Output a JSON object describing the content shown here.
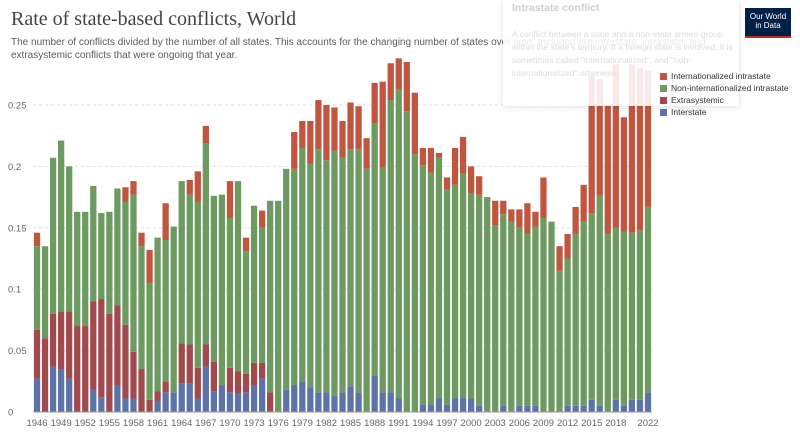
{
  "header": {
    "title": "Rate of state-based conflicts, World",
    "subtitle": "The number of conflicts divided by the number of all states. This accounts for the changing number of states over time. Included are interstate, intrastate, and extrasystemic conflicts that were ongoing that year.",
    "logo_line1": "Our World",
    "logo_line2": "in Data"
  },
  "tooltip": {
    "title": "Intrastate conflict",
    "text": "A conflict between a state and a non-state armed group within the state's territory. If a foreign state is involved, it is sometimes called \"internationalized\", and \"non-internationalized\" otherwise."
  },
  "legend": [
    {
      "label": "Internationalized intrastate",
      "color": "#c15640"
    },
    {
      "label": "Non-internationalized intrastate",
      "color": "#6c9a61"
    },
    {
      "label": "Extrasystemic",
      "color": "#a14a4e"
    },
    {
      "label": "Interstate",
      "color": "#5d73a8"
    }
  ],
  "chart_data": {
    "type": "bar",
    "stacked": true,
    "title": "Rate of state-based conflicts, World",
    "ylim": [
      0,
      0.285
    ],
    "y_ticks": [
      "0",
      "0.05",
      "0.1",
      "0.15",
      "0.2",
      "0.25"
    ],
    "y_tick_values": [
      0,
      0.05,
      0.1,
      0.15,
      0.2,
      0.25
    ],
    "x_tick_labels": [
      "1946",
      "1949",
      "1952",
      "1955",
      "1958",
      "1961",
      "1964",
      "1967",
      "1970",
      "1973",
      "1976",
      "1979",
      "1982",
      "1985",
      "1988",
      "1991",
      "1994",
      "1997",
      "2000",
      "2003",
      "2006",
      "2009",
      "2012",
      "2015",
      "2018",
      "2022"
    ],
    "grid": true,
    "x": [
      1946,
      1947,
      1948,
      1949,
      1950,
      1951,
      1952,
      1953,
      1954,
      1955,
      1956,
      1957,
      1958,
      1959,
      1960,
      1961,
      1962,
      1963,
      1964,
      1965,
      1966,
      1967,
      1968,
      1969,
      1970,
      1971,
      1972,
      1973,
      1974,
      1975,
      1976,
      1977,
      1978,
      1979,
      1980,
      1981,
      1982,
      1983,
      1984,
      1985,
      1986,
      1987,
      1988,
      1989,
      1990,
      1991,
      1992,
      1993,
      1994,
      1995,
      1996,
      1997,
      1998,
      1999,
      2000,
      2001,
      2002,
      2003,
      2004,
      2005,
      2006,
      2007,
      2008,
      2009,
      2010,
      2011,
      2012,
      2013,
      2014,
      2015,
      2016,
      2017,
      2018,
      2019,
      2020,
      2021,
      2022
    ],
    "series": [
      {
        "name": "Interstate",
        "color": "#5d73a8",
        "values": [
          0.027,
          0.0,
          0.037,
          0.035,
          0.027,
          0.0,
          0.0,
          0.018,
          0.012,
          0.0,
          0.022,
          0.011,
          0.011,
          0.0,
          0.0,
          0.009,
          0.016,
          0.016,
          0.023,
          0.023,
          0.011,
          0.037,
          0.017,
          0.022,
          0.016,
          0.015,
          0.016,
          0.022,
          0.027,
          0.0,
          0.0,
          0.018,
          0.022,
          0.025,
          0.02,
          0.016,
          0.016,
          0.013,
          0.016,
          0.021,
          0.016,
          0.0,
          0.03,
          0.016,
          0.016,
          0.011,
          0.0,
          0.0,
          0.006,
          0.006,
          0.011,
          0.006,
          0.011,
          0.011,
          0.011,
          0.005,
          0.0,
          0.0,
          0.005,
          0.0,
          0.005,
          0.005,
          0.005,
          0.0,
          0.0,
          0.0,
          0.005,
          0.005,
          0.005,
          0.01,
          0.005,
          0.0,
          0.01,
          0.005,
          0.01,
          0.01,
          0.016
        ]
      },
      {
        "name": "Extrasystemic",
        "color": "#a14a4e",
        "values": [
          0.04,
          0.06,
          0.043,
          0.047,
          0.055,
          0.07,
          0.07,
          0.072,
          0.08,
          0.08,
          0.065,
          0.06,
          0.038,
          0.035,
          0.01,
          0.008,
          0.009,
          0.0,
          0.033,
          0.032,
          0.025,
          0.018,
          0.024,
          0.0,
          0.02,
          0.018,
          0.015,
          0.018,
          0.013,
          0.016,
          0.0,
          0.0,
          0.0,
          0.0,
          0.0,
          0.0,
          0.0,
          0.0,
          0.0,
          0.0,
          0.0,
          0.0,
          0.0,
          0.0,
          0.0,
          0.0,
          0.0,
          0.0,
          0.0,
          0.0,
          0.0,
          0.0,
          0.0,
          0.0,
          0.0,
          0.0,
          0.0,
          0.0,
          0.0,
          0.0,
          0.0,
          0.0,
          0.0,
          0.0,
          0.0,
          0.0,
          0.0,
          0.0,
          0.0,
          0.0,
          0.0,
          0.0,
          0.0,
          0.0,
          0.0,
          0.0,
          0.0
        ]
      },
      {
        "name": "Non-internationalized intrastate",
        "color": "#6c9a61",
        "values": [
          0.068,
          0.075,
          0.127,
          0.139,
          0.118,
          0.093,
          0.093,
          0.094,
          0.07,
          0.083,
          0.095,
          0.1,
          0.128,
          0.1,
          0.095,
          0.125,
          0.115,
          0.135,
          0.132,
          0.122,
          0.135,
          0.164,
          0.135,
          0.155,
          0.122,
          0.155,
          0.1,
          0.128,
          0.11,
          0.156,
          0.172,
          0.18,
          0.176,
          0.19,
          0.182,
          0.198,
          0.189,
          0.2,
          0.191,
          0.193,
          0.198,
          0.198,
          0.205,
          0.183,
          0.238,
          0.252,
          0.245,
          0.21,
          0.195,
          0.189,
          0.196,
          0.175,
          0.174,
          0.183,
          0.167,
          0.172,
          0.175,
          0.152,
          0.156,
          0.155,
          0.145,
          0.14,
          0.146,
          0.158,
          0.155,
          0.115,
          0.12,
          0.14,
          0.15,
          0.152,
          0.171,
          0.145,
          0.14,
          0.142,
          0.136,
          0.138,
          0.151
        ]
      },
      {
        "name": "Internationalized intrastate",
        "color": "#c15640",
        "values": [
          0.011,
          0.0,
          0.0,
          0.0,
          0.0,
          0.0,
          0.0,
          0.0,
          0.0,
          0.0,
          0.0,
          0.012,
          0.011,
          0.011,
          0.027,
          0.0,
          0.03,
          0.0,
          0.0,
          0.012,
          0.025,
          0.014,
          0.0,
          0.0,
          0.03,
          0.0,
          0.011,
          0.0,
          0.014,
          0.0,
          0.0,
          0.0,
          0.03,
          0.022,
          0.035,
          0.04,
          0.045,
          0.035,
          0.03,
          0.038,
          0.035,
          0.025,
          0.033,
          0.07,
          0.03,
          0.025,
          0.04,
          0.05,
          0.014,
          0.02,
          0.004,
          0.01,
          0.03,
          0.03,
          0.022,
          0.015,
          0.0,
          0.02,
          0.011,
          0.01,
          0.015,
          0.025,
          0.012,
          0.033,
          0.0,
          0.02,
          0.02,
          0.022,
          0.03,
          0.112,
          0.095,
          0.105,
          0.133,
          0.093,
          0.137,
          0.132,
          0.111
        ]
      }
    ]
  }
}
